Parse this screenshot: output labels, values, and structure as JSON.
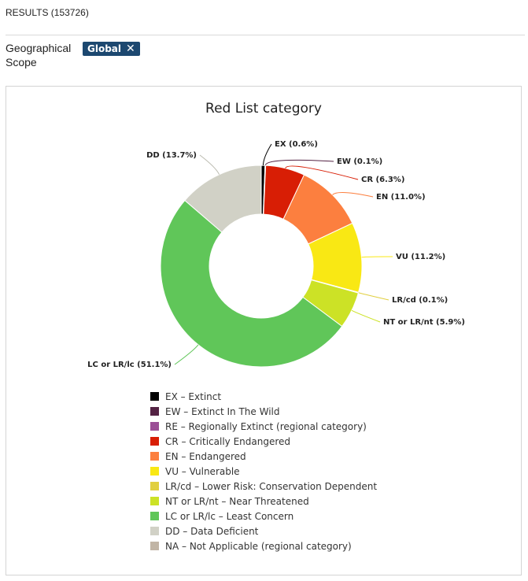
{
  "results": {
    "label": "RESULTS (153726)"
  },
  "scope": {
    "label": "Geographical Scope",
    "chip": "Global",
    "remove_icon": "close-icon"
  },
  "chart_data": {
    "type": "pie",
    "donut": true,
    "title": "Red List category",
    "slices": [
      {
        "code": "EX",
        "label": "EX (0.6%)",
        "value": 0.6,
        "color": "#000000"
      },
      {
        "code": "EW",
        "label": "EW (0.1%)",
        "value": 0.1,
        "color": "#542344"
      },
      {
        "code": "CR",
        "label": "CR (6.3%)",
        "value": 6.3,
        "color": "#d81e05"
      },
      {
        "code": "EN",
        "label": "EN (11.0%)",
        "value": 11.0,
        "color": "#fc7f3f"
      },
      {
        "code": "VU",
        "label": "VU (11.2%)",
        "value": 11.2,
        "color": "#f9e814"
      },
      {
        "code": "LR/cd",
        "label": "LR/cd (0.1%)",
        "value": 0.1,
        "color": "#e1cf40"
      },
      {
        "code": "NT or LR/nt",
        "label": "NT or LR/nt (5.9%)",
        "value": 5.9,
        "color": "#cce226"
      },
      {
        "code": "LC or LR/lc",
        "label": "LC or LR/lc (51.1%)",
        "value": 51.1,
        "color": "#60c659"
      },
      {
        "code": "DD",
        "label": "DD (13.7%)",
        "value": 13.7,
        "color": "#d1d1c6"
      }
    ],
    "legend": [
      {
        "label": "EX – Extinct",
        "color": "#000000"
      },
      {
        "label": "EW – Extinct In The Wild",
        "color": "#542344"
      },
      {
        "label": "RE – Regionally Extinct (regional category)",
        "color": "#9b4f96"
      },
      {
        "label": "CR – Critically Endangered",
        "color": "#d81e05"
      },
      {
        "label": "EN – Endangered",
        "color": "#fc7f3f"
      },
      {
        "label": "VU – Vulnerable",
        "color": "#f9e814"
      },
      {
        "label": "LR/cd – Lower Risk: Conservation Dependent",
        "color": "#e1cf40"
      },
      {
        "label": "NT or LR/nt – Near Threatened",
        "color": "#cce226"
      },
      {
        "label": "LC or LR/lc – Least Concern",
        "color": "#60c659"
      },
      {
        "label": "DD – Data Deficient",
        "color": "#d1d1c6"
      },
      {
        "label": "NA – Not Applicable (regional category)",
        "color": "#c1b5a5"
      }
    ]
  }
}
